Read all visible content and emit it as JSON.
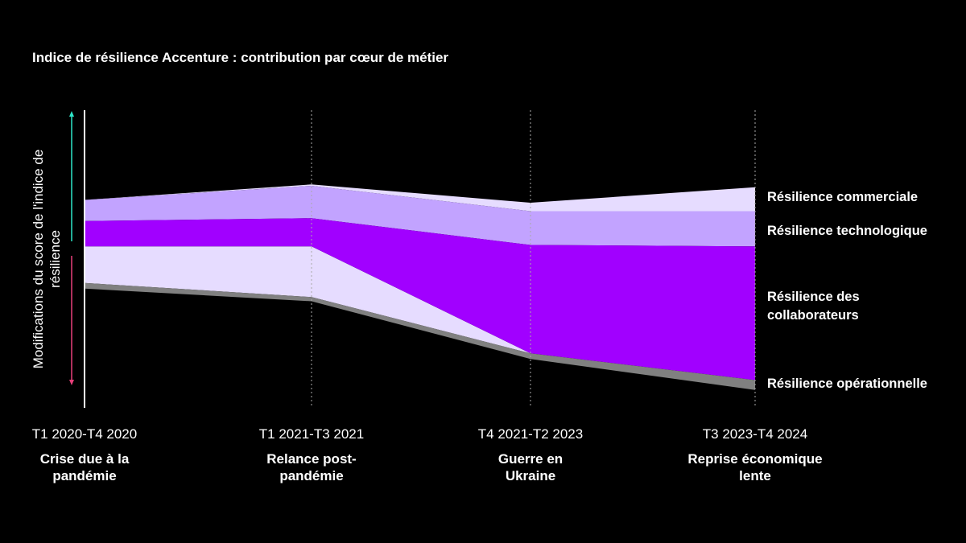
{
  "chart_data": {
    "type": "area",
    "title": "Indice de résilience Accenture : contribution par cœur de métier",
    "ylabel": "Modifications du score de l'indice de résilience",
    "ylim": [
      -100,
      100
    ],
    "grid": false,
    "legend": "right",
    "categories": [
      {
        "period": "T1 2020-T4 2020",
        "event": "Crise due à la pandémie"
      },
      {
        "period": "T1 2021-T3 2021",
        "event": "Relance post-pandémie"
      },
      {
        "period": "T4 2021-T2 2023",
        "event": "Guerre en Ukraine"
      },
      {
        "period": "T3 2023-T4 2024",
        "event": "Reprise économique lente"
      }
    ],
    "series": [
      {
        "name": "Résilience commerciale",
        "color": "#e6dcff",
        "ranges": [
          [
            38,
            38
          ],
          [
            48,
            49
          ],
          [
            30,
            36
          ],
          [
            30,
            47
          ]
        ],
        "lower_ranges": [
          [
            -21,
            5
          ],
          [
            -31,
            5
          ],
          [
            -71,
            -71
          ],
          [
            -90,
            -90
          ]
        ]
      },
      {
        "name": "Résilience technologique",
        "color": "#c2a3ff",
        "ranges": [
          [
            23,
            38
          ],
          [
            25,
            48
          ],
          [
            6,
            30
          ],
          [
            5,
            30
          ]
        ]
      },
      {
        "name": "Résilience des collaborateurs",
        "color": "#a100ff",
        "ranges": [
          [
            5,
            23
          ],
          [
            5,
            25
          ],
          [
            -71,
            6
          ],
          [
            -90,
            5
          ]
        ]
      },
      {
        "name": "Résilience opérationnelle",
        "color": "#808080",
        "ranges": [
          [
            -25,
            -21
          ],
          [
            -34,
            -31
          ],
          [
            -75,
            -71
          ],
          [
            -97,
            -90
          ]
        ]
      }
    ],
    "arrow_colors": {
      "up": "#2ee6c8",
      "down": "#e8407a"
    }
  }
}
